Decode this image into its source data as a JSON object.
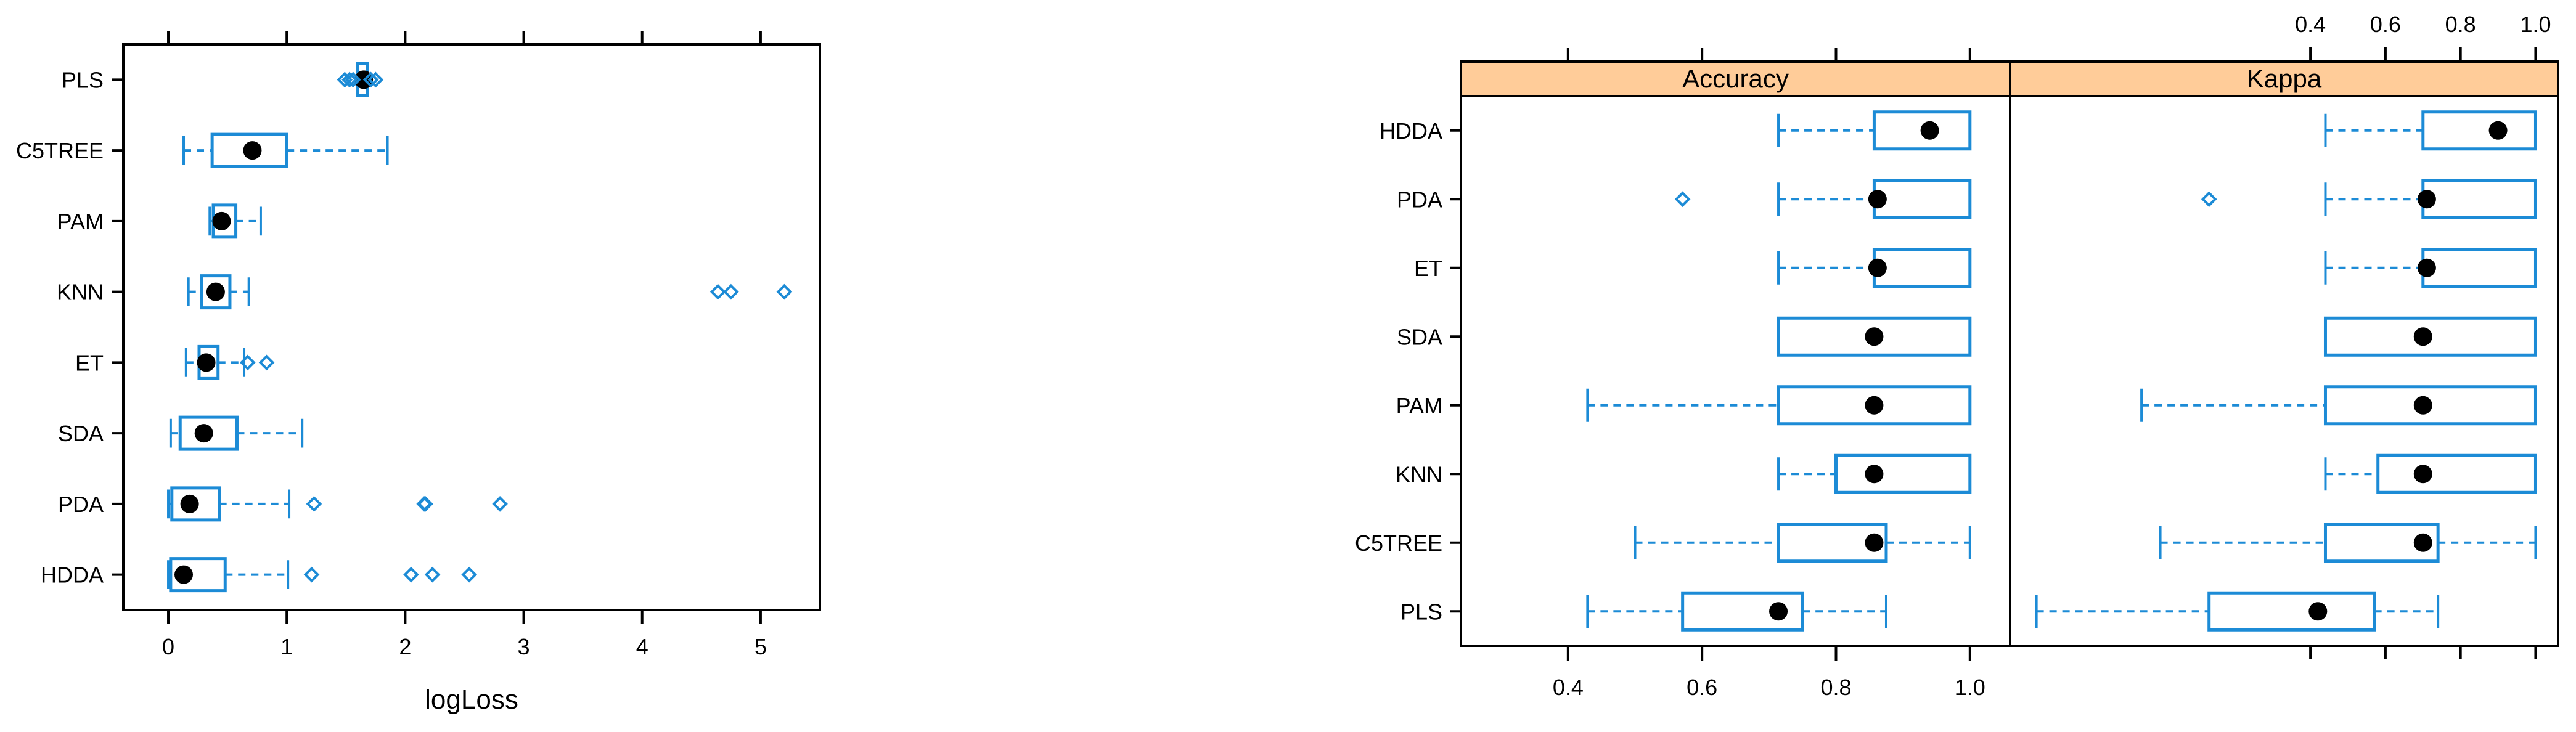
{
  "chart_data": [
    {
      "type": "boxplot",
      "orientation": "horizontal",
      "xlabel": "logLoss",
      "xlim": [
        -0.38,
        5.5
      ],
      "xticks": [
        0,
        1,
        2,
        3,
        4,
        5
      ],
      "xtick_labels": [
        "0",
        "1",
        "2",
        "3",
        "4",
        "5"
      ],
      "categories": [
        "PLS",
        "C5TREE",
        "PAM",
        "KNN",
        "ET",
        "SDA",
        "PDA",
        "HDDA"
      ],
      "boxes": [
        {
          "label": "PLS",
          "q1": 1.6,
          "median": 1.65,
          "q3": 1.68,
          "whisker_low": 1.6,
          "whisker_high": 1.68,
          "outliers": [
            1.49,
            1.53,
            1.56,
            1.71,
            1.75
          ]
        },
        {
          "label": "C5TREE",
          "q1": 0.37,
          "median": 0.71,
          "q3": 1.0,
          "whisker_low": 0.13,
          "whisker_high": 1.85,
          "outliers": []
        },
        {
          "label": "PAM",
          "q1": 0.38,
          "median": 0.45,
          "q3": 0.57,
          "whisker_low": 0.35,
          "whisker_high": 0.78,
          "outliers": []
        },
        {
          "label": "KNN",
          "q1": 0.28,
          "median": 0.4,
          "q3": 0.52,
          "whisker_low": 0.17,
          "whisker_high": 0.68,
          "outliers": [
            4.64,
            4.75,
            5.2
          ]
        },
        {
          "label": "ET",
          "q1": 0.26,
          "median": 0.32,
          "q3": 0.42,
          "whisker_low": 0.15,
          "whisker_high": 0.64,
          "outliers": [
            0.67,
            0.83
          ]
        },
        {
          "label": "SDA",
          "q1": 0.1,
          "median": 0.3,
          "q3": 0.58,
          "whisker_low": 0.02,
          "whisker_high": 1.13,
          "outliers": []
        },
        {
          "label": "PDA",
          "q1": 0.03,
          "median": 0.18,
          "q3": 0.43,
          "whisker_low": 0.0,
          "whisker_high": 1.02,
          "outliers": [
            1.23,
            2.16,
            2.17,
            2.8
          ]
        },
        {
          "label": "HDDA",
          "q1": 0.02,
          "median": 0.13,
          "q3": 0.48,
          "whisker_low": 0.0,
          "whisker_high": 1.01,
          "outliers": [
            1.21,
            2.05,
            2.23,
            2.54
          ]
        }
      ]
    },
    {
      "type": "boxplot",
      "orientation": "horizontal",
      "panels": [
        "Accuracy",
        "Kappa"
      ],
      "categories": [
        "HDDA",
        "PDA",
        "ET",
        "SDA",
        "PAM",
        "KNN",
        "C5TREE",
        "PLS"
      ],
      "panel_data": [
        {
          "panel": "Accuracy",
          "xlim": [
            0.24,
            1.06
          ],
          "xticks": [
            0.4,
            0.6,
            0.8,
            1.0
          ],
          "xtick_labels": [
            "0.4",
            "0.6",
            "0.8",
            "1.0"
          ],
          "tick_labels_side": "bottom",
          "boxes": [
            {
              "label": "HDDA",
              "q1": 0.857,
              "median": 0.94,
              "q3": 1.0,
              "whisker_low": 0.714,
              "whisker_high": 1.0,
              "outliers": []
            },
            {
              "label": "PDA",
              "q1": 0.857,
              "median": 0.862,
              "q3": 1.0,
              "whisker_low": 0.714,
              "whisker_high": 1.0,
              "outliers": [
                0.571
              ]
            },
            {
              "label": "ET",
              "q1": 0.857,
              "median": 0.862,
              "q3": 1.0,
              "whisker_low": 0.714,
              "whisker_high": 1.0,
              "outliers": []
            },
            {
              "label": "SDA",
              "q1": 0.714,
              "median": 0.857,
              "q3": 1.0,
              "whisker_low": 0.714,
              "whisker_high": 1.0,
              "outliers": []
            },
            {
              "label": "PAM",
              "q1": 0.714,
              "median": 0.857,
              "q3": 1.0,
              "whisker_low": 0.429,
              "whisker_high": 1.0,
              "outliers": []
            },
            {
              "label": "KNN",
              "q1": 0.8,
              "median": 0.857,
              "q3": 1.0,
              "whisker_low": 0.714,
              "whisker_high": 1.0,
              "outliers": []
            },
            {
              "label": "C5TREE",
              "q1": 0.714,
              "median": 0.857,
              "q3": 0.875,
              "whisker_low": 0.5,
              "whisker_high": 1.0,
              "outliers": []
            },
            {
              "label": "PLS",
              "q1": 0.571,
              "median": 0.714,
              "q3": 0.75,
              "whisker_low": 0.429,
              "whisker_high": 0.875,
              "outliers": []
            }
          ]
        },
        {
          "panel": "Kappa",
          "xlim": [
            -0.4,
            1.06
          ],
          "xticks": [
            0.4,
            0.6,
            0.8,
            1.0
          ],
          "xtick_labels": [
            "0.4",
            "0.6",
            "0.8",
            "1.0"
          ],
          "tick_labels_side": "top",
          "boxes": [
            {
              "label": "HDDA",
              "q1": 0.7,
              "median": 0.9,
              "q3": 1.0,
              "whisker_low": 0.44,
              "whisker_high": 1.0,
              "outliers": []
            },
            {
              "label": "PDA",
              "q1": 0.7,
              "median": 0.71,
              "q3": 1.0,
              "whisker_low": 0.44,
              "whisker_high": 1.0,
              "outliers": [
                0.13
              ]
            },
            {
              "label": "ET",
              "q1": 0.7,
              "median": 0.71,
              "q3": 1.0,
              "whisker_low": 0.44,
              "whisker_high": 1.0,
              "outliers": []
            },
            {
              "label": "SDA",
              "q1": 0.44,
              "median": 0.7,
              "q3": 1.0,
              "whisker_low": 0.44,
              "whisker_high": 1.0,
              "outliers": []
            },
            {
              "label": "PAM",
              "q1": 0.44,
              "median": 0.7,
              "q3": 1.0,
              "whisker_low": -0.05,
              "whisker_high": 1.0,
              "outliers": []
            },
            {
              "label": "KNN",
              "q1": 0.58,
              "median": 0.7,
              "q3": 1.0,
              "whisker_low": 0.44,
              "whisker_high": 1.0,
              "outliers": []
            },
            {
              "label": "C5TREE",
              "q1": 0.44,
              "median": 0.7,
              "q3": 0.74,
              "whisker_low": 0.0,
              "whisker_high": 1.0,
              "outliers": []
            },
            {
              "label": "PLS",
              "q1": 0.13,
              "median": 0.42,
              "q3": 0.57,
              "whisker_low": -0.33,
              "whisker_high": 0.74,
              "outliers": []
            }
          ]
        }
      ]
    }
  ],
  "colors": {
    "box_stroke": "#1c8bd6",
    "outlier_stroke": "#1c8bd6",
    "median_dot": "#000000",
    "frame": "#000000",
    "strip_fill": "#ffcc99",
    "background": "#ffffff"
  }
}
